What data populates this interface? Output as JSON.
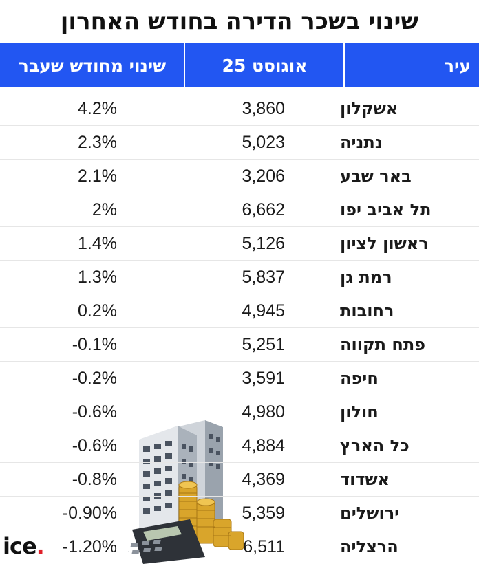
{
  "title": "שינוי בשכר הדירה בחודש האחרון",
  "header": {
    "city": "עיר",
    "aug": "אוגוסט 25",
    "change": "שינוי מחודש שעבר"
  },
  "rows": [
    {
      "city": "אשקלון",
      "aug": "3,860",
      "change": "4.2%"
    },
    {
      "city": "נתניה",
      "aug": "5,023",
      "change": "2.3%"
    },
    {
      "city": "באר שבע",
      "aug": "3,206",
      "change": "2.1%"
    },
    {
      "city": "תל אביב יפו",
      "aug": "6,662",
      "change": "2%"
    },
    {
      "city": "ראשון לציון",
      "aug": "5,126",
      "change": "1.4%"
    },
    {
      "city": "רמת גן",
      "aug": "5,837",
      "change": "1.3%"
    },
    {
      "city": "רחובות",
      "aug": "4,945",
      "change": "0.2%"
    },
    {
      "city": "פתח תקווה",
      "aug": "5,251",
      "change": "-0.1%"
    },
    {
      "city": "חיפה",
      "aug": "3,591",
      "change": "-0.2%"
    },
    {
      "city": "חולון",
      "aug": "4,980",
      "change": "-0.6%"
    },
    {
      "city": "כל הארץ",
      "aug": "4,884",
      "change": "-0.6%"
    },
    {
      "city": "אשדוד",
      "aug": "4,369",
      "change": "-0.8%"
    },
    {
      "city": "ירושלים",
      "aug": "5,359",
      "change": "-0.90%"
    },
    {
      "city": "הרצליה",
      "aug": "6,511",
      "change": "-1.20%"
    }
  ],
  "chart_data": {
    "type": "table",
    "title": "שינוי בשכר הדירה בחודש האחרון",
    "columns": [
      "עיר",
      "אוגוסט 25",
      "שינוי מחודש שעבר"
    ],
    "categories": [
      "אשקלון",
      "נתניה",
      "באר שבע",
      "תל אביב יפו",
      "ראשון לציון",
      "רמת גן",
      "רחובות",
      "פתח תקווה",
      "חיפה",
      "חולון",
      "כל הארץ",
      "אשדוד",
      "ירושלים",
      "הרצליה"
    ],
    "series": [
      {
        "name": "אוגוסט 25",
        "values": [
          3860,
          5023,
          3206,
          6662,
          5126,
          5837,
          4945,
          5251,
          3591,
          4980,
          4884,
          4369,
          5359,
          6511
        ]
      },
      {
        "name": "שינוי מחודש שעבר",
        "values": [
          4.2,
          2.3,
          2.1,
          2.0,
          1.4,
          1.3,
          0.2,
          -0.1,
          -0.2,
          -0.6,
          -0.6,
          -0.8,
          -0.9,
          -1.2
        ]
      }
    ]
  },
  "logo": {
    "text": "ice",
    "dot": "."
  },
  "colors": {
    "header_bg": "#2256f2",
    "header_text": "#ffffff",
    "logo_dot": "#e0202a"
  },
  "illustration": {
    "icon": "building-coins-calculator-icon"
  }
}
